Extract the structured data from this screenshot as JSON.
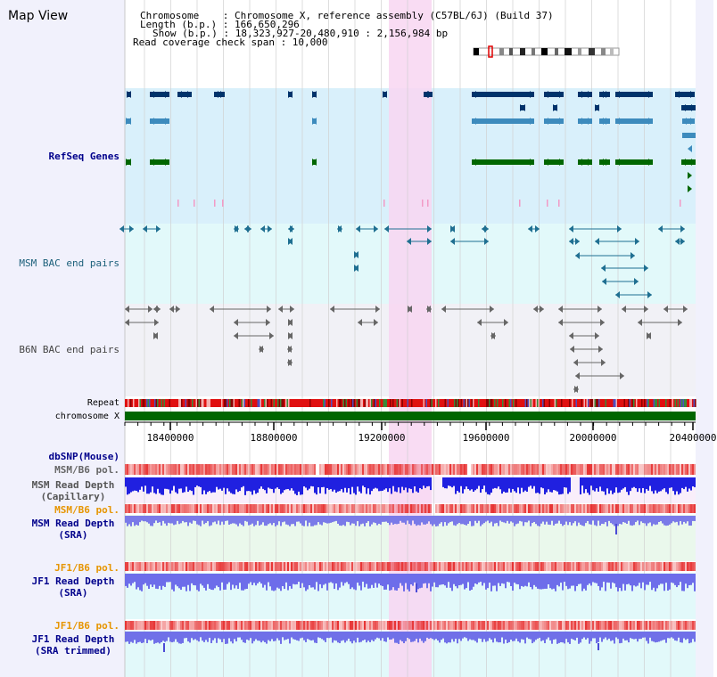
{
  "page": {
    "title": "Map View"
  },
  "info": {
    "chromosome": "Chromosome    : Chromosome X, reference assembly (C57BL/6J) (Build 37)",
    "length": "Length (b.p.) : 166,650,296",
    "show": "Show (b.p.) : 18,323,927-20,480,910 : 2,156,984 bp",
    "coverage": "Read coverage check span : 10,000"
  },
  "tracks": {
    "refseq": "RefSeq Genes",
    "msm_bac": "MSM BAC end pairs",
    "b6n_bac": "B6N BAC end pairs",
    "repeat": "Repeat",
    "chromosome": "chromosome X",
    "dbsnp": "dbSNP(Mouse)",
    "msm_b6_pol_1": "MSM/B6 pol.",
    "msm_read_depth_cap": "MSM Read Depth\n(Capillary)",
    "msm_b6_pol_2": "MSM/B6 pol.",
    "msm_read_depth_sra": "MSM Read Depth\n(SRA)",
    "jf1_b6_pol_1": "JF1/B6 pol.",
    "jf1_read_depth_sra": "JF1 Read Depth\n(SRA)",
    "jf1_b6_pol_2": "JF1/B6 pol.",
    "jf1_read_depth_trim": "JF1 Read Depth\n(SRA trimmed)"
  },
  "axis": {
    "ticks": [
      "18400000",
      "18800000",
      "19200000",
      "19600000",
      "20000000",
      "20400000"
    ]
  },
  "colors": {
    "refseq_bg": "#d9f0fb",
    "msm_bg": "#e2f9fa",
    "b6n_bg": "#f1f1f6",
    "highlight": "#f8d6f1",
    "refseq_dark": "#00336b",
    "refseq_mid": "#3d8bbd",
    "refseq_green": "#006600",
    "msm_bac": "#1f6f91",
    "b6n_bac": "#666666",
    "chromosome": "#006600",
    "label_navy": "#00008b",
    "label_orange": "#e69500",
    "label_teal": "#1b5f7a"
  }
}
